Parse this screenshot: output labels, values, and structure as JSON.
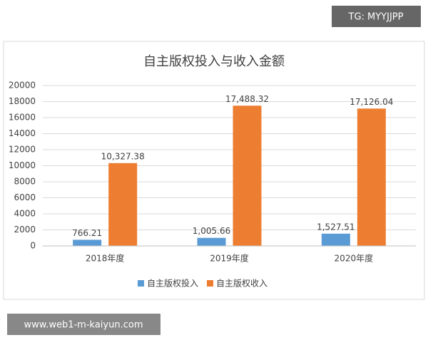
{
  "chart_data": {
    "type": "bar",
    "title": "自主版权投入与收入金额",
    "categories": [
      "2018年度",
      "2019年度",
      "2020年度"
    ],
    "series": [
      {
        "name": "自主版权投入",
        "color": "#5b9bd5",
        "values": [
          766.21,
          1005.66,
          1527.51
        ],
        "value_labels": [
          "766.21",
          "1,005.66",
          "1,527.51"
        ]
      },
      {
        "name": "自主版权收入",
        "color": "#ed7d31",
        "values": [
          10327.38,
          17488.32,
          17126.04
        ],
        "value_labels": [
          "10,327.38",
          "17,488.32",
          "17,126.04"
        ]
      }
    ],
    "ylim": [
      0,
      20000
    ],
    "yticks": [
      0,
      2000,
      4000,
      6000,
      8000,
      10000,
      12000,
      14000,
      16000,
      18000,
      20000
    ],
    "grid": true,
    "legend": "bottom"
  },
  "watermarks": [
    "TG: MYYJJPP",
    "www.web1-m-kaiyun.com"
  ]
}
